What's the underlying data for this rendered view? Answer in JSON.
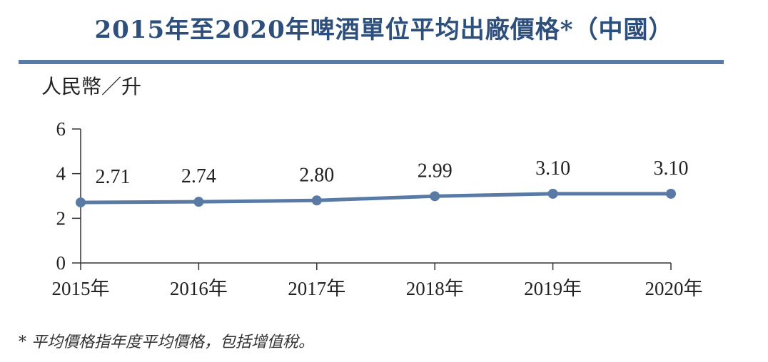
{
  "header": {
    "title": "2015年至2020年啤酒單位平均出廠價格*（中國）"
  },
  "footnote": "* 平均價格指年度平均價格，包括增值稅。",
  "chart_data": {
    "type": "line",
    "title": "2015年至2020年啤酒單位平均出廠價格*（中國）",
    "ylabel": "人民幣／升",
    "xlabel": "",
    "categories": [
      "2015年",
      "2016年",
      "2017年",
      "2018年",
      "2019年",
      "2020年"
    ],
    "values": [
      2.71,
      2.74,
      2.8,
      2.99,
      3.1,
      3.1
    ],
    "value_labels": [
      "2.71",
      "2.74",
      "2.80",
      "2.99",
      "3.10",
      "3.10"
    ],
    "ylim": [
      0,
      6
    ],
    "yticks": [
      0,
      2,
      4,
      6
    ],
    "grid": false,
    "legend": "none",
    "line_color": "#5a7aa6",
    "title_color": "#2e4f7c"
  }
}
